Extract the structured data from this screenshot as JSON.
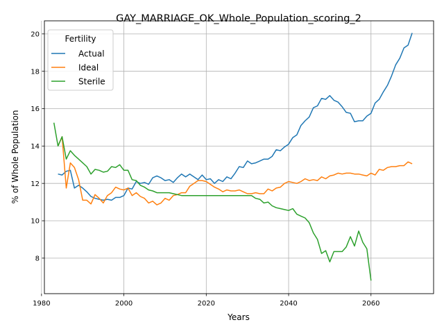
{
  "chart_data": {
    "type": "line",
    "title": "GAY_MARRIAGE_OK_Whole_Population_scoring_2",
    "xlabel": "Years",
    "ylabel": "% of Whole Population",
    "xlim": [
      1980.7,
      2075.2
    ],
    "ylim": [
      6.1,
      20.7
    ],
    "xticks": [
      1980,
      2000,
      2020,
      2040,
      2060
    ],
    "yticks": [
      8,
      10,
      12,
      14,
      16,
      18,
      20
    ],
    "grid": true,
    "legend": {
      "title": "Fertility",
      "placement": "top-left"
    },
    "series": [
      {
        "name": "Actual",
        "color": "#1f77b4",
        "x": [
          1984,
          1985,
          1986,
          1987,
          1988,
          1989,
          1990,
          1991,
          1992,
          1993,
          1994,
          1995,
          1996,
          1997,
          1998,
          1999,
          2000,
          2001,
          2002,
          2003,
          2004,
          2005,
          2006,
          2007,
          2008,
          2009,
          2010,
          2011,
          2012,
          2013,
          2014,
          2015,
          2016,
          2017,
          2018,
          2019,
          2020,
          2021,
          2022,
          2023,
          2024,
          2025,
          2026,
          2027,
          2028,
          2029,
          2030,
          2031,
          2032,
          2033,
          2034,
          2035,
          2036,
          2037,
          2038,
          2039,
          2040,
          2041,
          2042,
          2043,
          2044,
          2045,
          2046,
          2047,
          2048,
          2049,
          2050,
          2051,
          2052,
          2053,
          2054,
          2055,
          2056,
          2057,
          2058,
          2059,
          2060,
          2061,
          2062,
          2063,
          2064,
          2065,
          2066,
          2067,
          2068,
          2069,
          2070
        ],
        "values": [
          12.5,
          12.45,
          12.65,
          12.7,
          11.75,
          11.9,
          11.75,
          11.55,
          11.3,
          11.2,
          11.15,
          11.1,
          11.15,
          11.1,
          11.25,
          11.25,
          11.35,
          11.75,
          11.7,
          12.1,
          12.0,
          12.05,
          11.95,
          12.3,
          12.4,
          12.3,
          12.15,
          12.2,
          12.05,
          12.3,
          12.5,
          12.35,
          12.5,
          12.35,
          12.2,
          12.45,
          12.2,
          12.25,
          12.0,
          12.2,
          12.1,
          12.35,
          12.25,
          12.55,
          12.9,
          12.85,
          13.2,
          13.05,
          13.1,
          13.2,
          13.3,
          13.3,
          13.45,
          13.8,
          13.75,
          13.95,
          14.1,
          14.45,
          14.6,
          15.1,
          15.35,
          15.55,
          16.05,
          16.15,
          16.55,
          16.5,
          16.7,
          16.45,
          16.35,
          16.1,
          15.8,
          15.75,
          15.3,
          15.35,
          15.35,
          15.6,
          15.75,
          16.3,
          16.5,
          16.9,
          17.25,
          17.75,
          18.35,
          18.7,
          19.25,
          19.4,
          20.05
        ]
      },
      {
        "name": "Ideal",
        "color": "#ff7f0e",
        "x": [
          1984,
          1985,
          1986,
          1987,
          1988,
          1989,
          1990,
          1991,
          1992,
          1993,
          1994,
          1995,
          1996,
          1997,
          1998,
          1999,
          2000,
          2001,
          2002,
          2003,
          2004,
          2005,
          2006,
          2007,
          2008,
          2009,
          2010,
          2011,
          2012,
          2013,
          2014,
          2015,
          2016,
          2017,
          2018,
          2019,
          2020,
          2021,
          2022,
          2023,
          2024,
          2025,
          2026,
          2027,
          2028,
          2029,
          2030,
          2031,
          2032,
          2033,
          2034,
          2035,
          2036,
          2037,
          2038,
          2039,
          2040,
          2041,
          2042,
          2043,
          2044,
          2045,
          2046,
          2047,
          2048,
          2049,
          2050,
          2051,
          2052,
          2053,
          2054,
          2055,
          2056,
          2057,
          2058,
          2059,
          2060,
          2061,
          2062,
          2063,
          2064,
          2065,
          2066,
          2067,
          2068,
          2069,
          2070
        ],
        "values": [
          14.0,
          14.5,
          11.75,
          13.1,
          12.85,
          12.2,
          11.1,
          11.1,
          10.9,
          11.4,
          11.2,
          10.95,
          11.35,
          11.5,
          11.8,
          11.7,
          11.65,
          11.75,
          11.35,
          11.5,
          11.3,
          11.2,
          10.95,
          11.05,
          10.85,
          10.95,
          11.2,
          11.1,
          11.35,
          11.4,
          11.5,
          11.5,
          11.85,
          12.0,
          12.15,
          12.15,
          12.1,
          11.95,
          11.8,
          11.7,
          11.55,
          11.65,
          11.6,
          11.6,
          11.65,
          11.55,
          11.45,
          11.45,
          11.5,
          11.45,
          11.45,
          11.7,
          11.6,
          11.75,
          11.8,
          12.0,
          12.1,
          12.05,
          12.0,
          12.1,
          12.25,
          12.15,
          12.2,
          12.15,
          12.35,
          12.25,
          12.4,
          12.45,
          12.55,
          12.5,
          12.55,
          12.55,
          12.5,
          12.5,
          12.45,
          12.4,
          12.55,
          12.45,
          12.75,
          12.7,
          12.85,
          12.9,
          12.9,
          12.95,
          12.95,
          13.15,
          13.05
        ]
      },
      {
        "name": "Sterile",
        "color": "#2ca02c",
        "x": [
          1983,
          1984,
          1985,
          1986,
          1987,
          1988,
          1989,
          1990,
          1991,
          1992,
          1993,
          1994,
          1995,
          1996,
          1997,
          1998,
          1999,
          2000,
          2001,
          2002,
          2003,
          2004,
          2005,
          2006,
          2007,
          2008,
          2009,
          2010,
          2011,
          2012,
          2013,
          2014,
          2015,
          2016,
          2017,
          2018,
          2019,
          2020,
          2021,
          2022,
          2023,
          2024,
          2025,
          2026,
          2027,
          2028,
          2029,
          2030,
          2031,
          2032,
          2033,
          2034,
          2035,
          2036,
          2037,
          2038,
          2039,
          2040,
          2041,
          2042,
          2043,
          2044,
          2045,
          2046,
          2047,
          2048,
          2049,
          2050,
          2051,
          2052,
          2053,
          2054,
          2055,
          2056,
          2057,
          2058,
          2059,
          2060
        ],
        "values": [
          15.25,
          14.0,
          14.5,
          13.3,
          13.75,
          13.5,
          13.3,
          13.1,
          12.9,
          12.5,
          12.75,
          12.7,
          12.6,
          12.65,
          12.9,
          12.85,
          13.0,
          12.7,
          12.7,
          12.2,
          12.15,
          11.9,
          11.8,
          11.65,
          11.6,
          11.5,
          11.5,
          11.5,
          11.5,
          11.45,
          11.4,
          11.35,
          11.35,
          11.35,
          11.35,
          11.35,
          11.35,
          11.35,
          11.35,
          11.35,
          11.35,
          11.35,
          11.35,
          11.35,
          11.35,
          11.35,
          11.35,
          11.35,
          11.35,
          11.2,
          11.15,
          10.95,
          11.0,
          10.8,
          10.7,
          10.65,
          10.6,
          10.55,
          10.65,
          10.35,
          10.25,
          10.15,
          9.9,
          9.35,
          9.0,
          8.25,
          8.4,
          7.8,
          8.35,
          8.35,
          8.35,
          8.6,
          9.15,
          8.65,
          9.45,
          8.85,
          8.5,
          6.8
        ]
      }
    ]
  }
}
